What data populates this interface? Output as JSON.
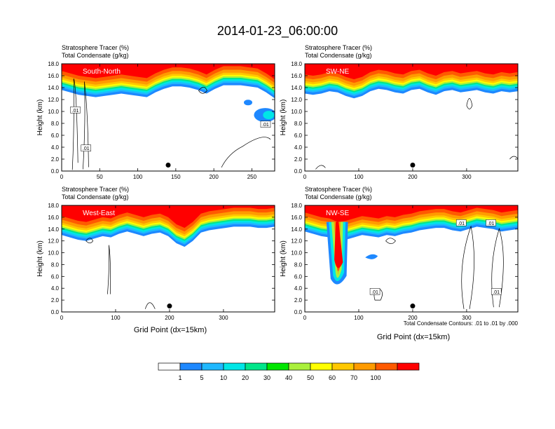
{
  "title": "2014-01-23_06:00:00",
  "panel_titles": {
    "line1": "Stratosphere Tracer",
    "unit1": "(%)",
    "line2": "Total Condensate",
    "unit2": "(g/kg)"
  },
  "colors": [
    "#ffffff",
    "#1e88ff",
    "#1fb8ff",
    "#00e6e6",
    "#00e68a",
    "#00e600",
    "#aaf03c",
    "#ffff00",
    "#ffc800",
    "#ff9b00",
    "#ff5a00",
    "#ff0000"
  ],
  "chart_data": [
    {
      "type": "heatmap",
      "label": "South-North",
      "xlabel": "",
      "ylabel": "Height (km)",
      "xlim": [
        0,
        280
      ],
      "ylim": [
        0,
        18
      ],
      "xticks": [
        "0",
        "50",
        "100",
        "150",
        "200",
        "250"
      ],
      "xtick_values": [
        0,
        50,
        100,
        150,
        200,
        250
      ],
      "yticks": [
        "0.0",
        "2.0",
        "4.0",
        "6.0",
        "8.0",
        "10.0",
        "12.0",
        "14.0",
        "16.0",
        "18.0"
      ],
      "marker_x": 140,
      "contour_labels": [
        {
          "x": 18,
          "y": 10.2,
          "text": ".01"
        },
        {
          "x": 32,
          "y": 3.8,
          "text": ".01"
        },
        {
          "x": 268,
          "y": 7.8,
          "text": ".01"
        }
      ],
      "tropopause_km": [
        15.0,
        14.6,
        14.2,
        14.0,
        13.8,
        14.0,
        14.2,
        14.4,
        14.2,
        14.0,
        13.8,
        14.6,
        15.2,
        15.6,
        15.6,
        15.4,
        15.0,
        14.4,
        15.2,
        15.8,
        15.8,
        15.8,
        15.6,
        15.4,
        14.6,
        13.6
      ],
      "moist_blob": {
        "x": [
          255,
          280
        ],
        "y": [
          8.0,
          11.0
        ]
      }
    },
    {
      "type": "heatmap",
      "label": "SW-NE",
      "xlabel": "",
      "ylabel": "Height (km)",
      "xlim": [
        0,
        395
      ],
      "ylim": [
        0,
        18
      ],
      "xticks": [
        "0",
        "100",
        "200",
        "300"
      ],
      "xtick_values": [
        0,
        100,
        200,
        300
      ],
      "yticks": [
        "0.0",
        "2.0",
        "4.0",
        "6.0",
        "8.0",
        "10.0",
        "12.0",
        "14.0",
        "16.0",
        "18.0"
      ],
      "marker_x": 200,
      "contour_labels": [],
      "tropopause_km": [
        14.4,
        14.2,
        14.4,
        14.8,
        14.6,
        14.0,
        13.6,
        14.0,
        14.8,
        15.2,
        15.0,
        14.6,
        14.4,
        15.0,
        15.2,
        14.6,
        14.2,
        14.8,
        15.0,
        14.6,
        14.8,
        15.0,
        14.6,
        14.4,
        14.8,
        14.6,
        14.8
      ]
    },
    {
      "type": "heatmap",
      "label": "West-East",
      "xlabel": "Grid Point (dx=15km)",
      "ylabel": "Height (km)",
      "xlim": [
        0,
        395
      ],
      "ylim": [
        0,
        18
      ],
      "xticks": [
        "0",
        "100",
        "200",
        "300"
      ],
      "xtick_values": [
        0,
        100,
        200,
        300
      ],
      "yticks": [
        "0.0",
        "2.0",
        "4.0",
        "6.0",
        "8.0",
        "10.0",
        "12.0",
        "14.0",
        "16.0",
        "18.0"
      ],
      "marker_x": 200,
      "contour_labels": [],
      "tropopause_km": [
        14.4,
        14.0,
        13.6,
        13.4,
        13.8,
        14.2,
        14.0,
        14.6,
        15.0,
        14.6,
        14.2,
        14.6,
        14.8,
        14.2,
        13.0,
        12.4,
        13.4,
        14.8,
        15.2,
        15.4,
        15.6,
        15.8,
        15.8,
        15.8,
        15.6,
        15.6,
        15.8
      ]
    },
    {
      "type": "heatmap",
      "label": "NW-SE",
      "xlabel": "Grid Point (dx=15km)",
      "ylabel": "Height (km)",
      "xlim": [
        0,
        395
      ],
      "ylim": [
        0,
        18
      ],
      "xticks": [
        "0",
        "100",
        "200",
        "300"
      ],
      "xtick_values": [
        0,
        100,
        200,
        300
      ],
      "yticks": [
        "0.0",
        "2.0",
        "4.0",
        "6.0",
        "8.0",
        "10.0",
        "12.0",
        "14.0",
        "16.0",
        "18.0"
      ],
      "marker_x": 200,
      "contour_labels": [
        {
          "x": 130,
          "y": 3.4,
          "text": ".01"
        },
        {
          "x": 290,
          "y": 15.0,
          "text": ".01"
        },
        {
          "x": 345,
          "y": 15.0,
          "text": ".01"
        },
        {
          "x": 355,
          "y": 3.4,
          "text": ".01"
        }
      ],
      "tropopause_km": [
        15.0,
        14.6,
        14.2,
        14.0,
        13.4,
        13.6,
        14.0,
        14.4,
        14.2,
        14.0,
        14.4,
        14.2,
        14.6,
        14.8,
        15.2,
        15.4,
        15.6,
        15.6,
        15.2,
        15.0,
        15.4,
        15.8,
        15.6,
        15.4,
        15.0,
        15.2,
        15.4
      ],
      "fold": {
        "x": [
          40,
          80
        ],
        "bottom_km": 4.2
      }
    }
  ],
  "contour_note": "Total Condensate Contours: .01 to .01 by .000",
  "colorbar": {
    "labels": [
      "1",
      "5",
      "10",
      "20",
      "30",
      "40",
      "50",
      "60",
      "70",
      "100"
    ]
  }
}
